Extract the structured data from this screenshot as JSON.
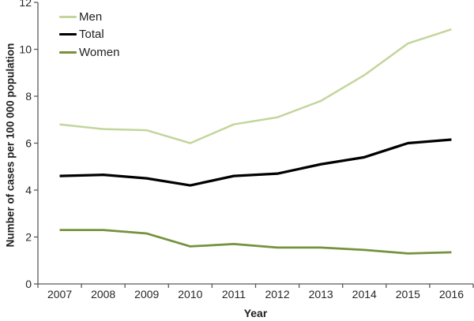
{
  "chart_data": {
    "type": "line",
    "title": "",
    "xlabel": "Year",
    "ylabel": "Number of cases per 100 000 population",
    "categories": [
      "2007",
      "2008",
      "2009",
      "2010",
      "2011",
      "2012",
      "2013",
      "2014",
      "2015",
      "2016"
    ],
    "ylim": [
      0,
      12
    ],
    "ytick_step": 2,
    "grid": false,
    "legend_position": "inside-top-left",
    "legend_order": [
      "Men",
      "Total",
      "Women"
    ],
    "axis_color": "#595959",
    "text_color": "#262626",
    "series": [
      {
        "name": "Men",
        "color": "#C2D69B",
        "line_width": 2.5,
        "values": [
          6.8,
          6.6,
          6.55,
          6.0,
          6.8,
          7.1,
          7.8,
          8.9,
          10.25,
          10.85
        ]
      },
      {
        "name": "Total",
        "color": "#000000",
        "line_width": 3.25,
        "values": [
          4.6,
          4.65,
          4.5,
          4.2,
          4.6,
          4.7,
          5.1,
          5.4,
          6.0,
          6.15
        ]
      },
      {
        "name": "Women",
        "color": "#76923C",
        "line_width": 2.75,
        "values": [
          2.3,
          2.3,
          2.15,
          1.6,
          1.7,
          1.55,
          1.55,
          1.45,
          1.3,
          1.35
        ]
      }
    ]
  }
}
